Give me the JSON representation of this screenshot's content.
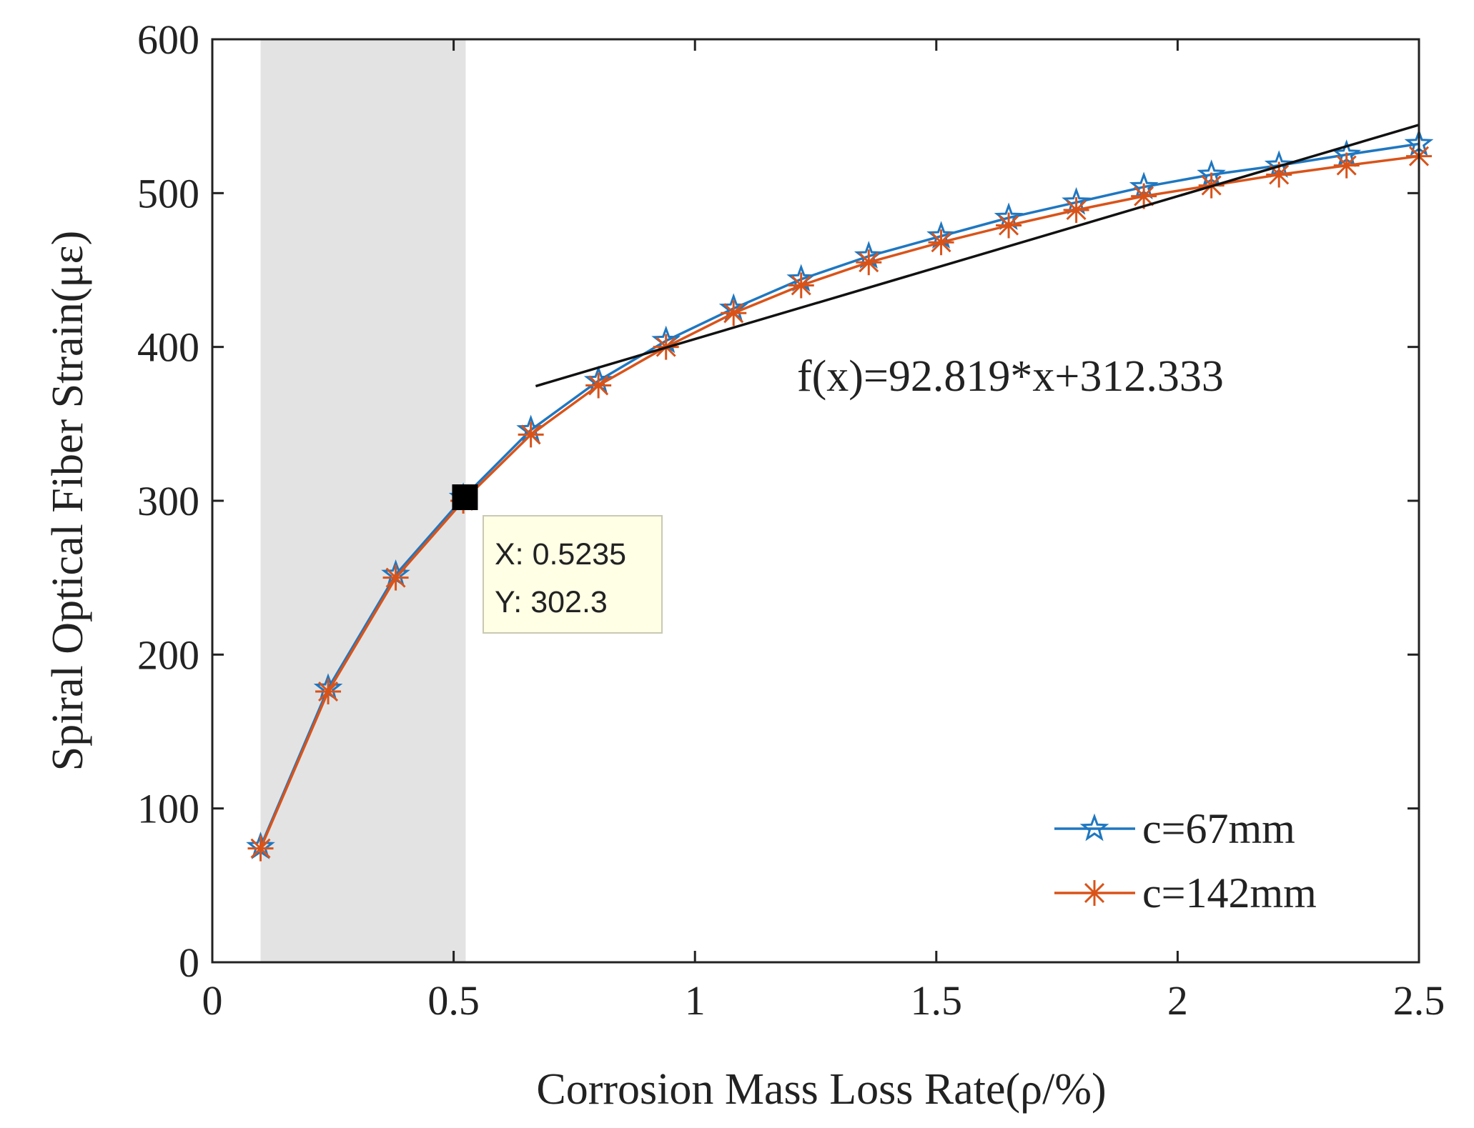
{
  "chart_data": {
    "type": "line",
    "xlabel": "Corrosion Mass Loss Rate(ρ/%)",
    "ylabel": "Spiral Optical Fiber Strain(με)",
    "xlim": [
      0,
      2.5
    ],
    "ylim": [
      0,
      600
    ],
    "x_ticks": [
      0,
      0.5,
      1,
      1.5,
      2,
      2.5
    ],
    "x_tick_labels": [
      "0",
      "0.5",
      "1",
      "1.5",
      "2",
      "2.5"
    ],
    "y_ticks": [
      0,
      100,
      200,
      300,
      400,
      500,
      600
    ],
    "y_tick_labels": [
      "0",
      "100",
      "200",
      "300",
      "400",
      "500",
      "600"
    ],
    "grid": false,
    "legend_position": "bottom-right",
    "shaded_region": {
      "x_start": 0.1,
      "x_end": 0.525,
      "color": "#e3e3e3"
    },
    "x": [
      0.1,
      0.24,
      0.38,
      0.52,
      0.66,
      0.8,
      0.94,
      1.08,
      1.22,
      1.36,
      1.51,
      1.65,
      1.79,
      1.93,
      2.07,
      2.21,
      2.35,
      2.5
    ],
    "series": [
      {
        "name": "c=67mm",
        "color": "#1f77c0",
        "marker": "pentagram",
        "values": [
          75,
          178,
          252,
          302,
          346,
          378,
          404,
          425,
          444,
          459,
          472,
          484,
          494,
          504,
          512,
          518,
          525,
          532
        ]
      },
      {
        "name": "c=142mm",
        "color": "#d95319",
        "marker": "asterisk",
        "values": [
          74,
          176,
          250,
          300,
          343,
          375,
          400,
          422,
          440,
          455,
          468,
          479,
          489,
          498,
          505,
          512,
          518,
          524
        ]
      }
    ],
    "fit_line": {
      "label": "f(x)=92.819*x+312.333",
      "slope": 92.819,
      "intercept": 312.333,
      "x_range": [
        0.67,
        2.5
      ],
      "color": "#111111"
    },
    "datatip": {
      "x_label": "X: 0.5235",
      "y_label": "Y: 302.3",
      "x": 0.5235,
      "y": 302.3
    }
  }
}
